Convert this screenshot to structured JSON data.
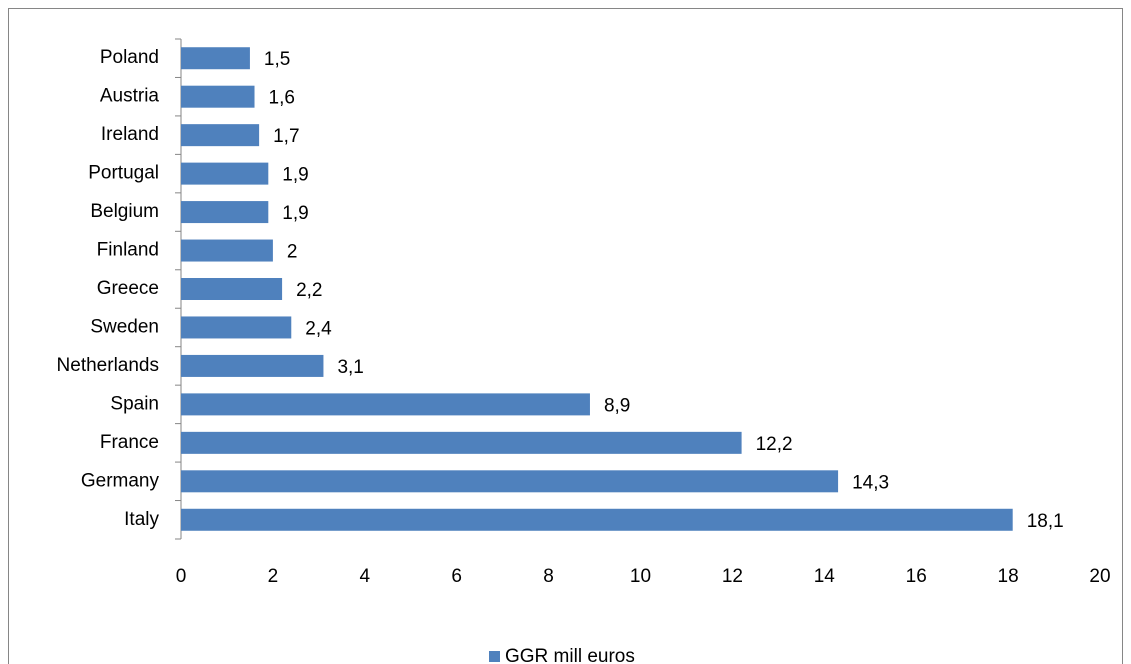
{
  "chart_data": {
    "type": "bar",
    "orientation": "horizontal",
    "categories": [
      "Poland",
      "Austria",
      "Ireland",
      "Portugal",
      "Belgium",
      "Finland",
      "Greece",
      "Sweden",
      "Netherlands",
      "Spain",
      "France",
      "Germany",
      "Italy"
    ],
    "series": [
      {
        "name": "GGR mill euros",
        "color": "#4f81bd",
        "values": [
          1.5,
          1.6,
          1.7,
          1.9,
          1.9,
          2,
          2.2,
          2.4,
          3.1,
          8.9,
          12.2,
          14.3,
          18.1
        ],
        "value_labels": [
          "1,5",
          "1,6",
          "1,7",
          "1,9",
          "1,9",
          "2",
          "2,2",
          "2,4",
          "3,1",
          "8,9",
          "12,2",
          "14,3",
          "18,1"
        ]
      }
    ],
    "xlim": [
      0,
      20
    ],
    "xticks": [
      0,
      2,
      4,
      6,
      8,
      10,
      12,
      14,
      16,
      18,
      20
    ],
    "grid": false,
    "legend": "bottom"
  }
}
